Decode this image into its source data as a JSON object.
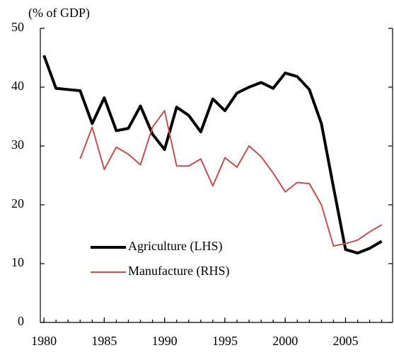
{
  "chart_data": {
    "type": "line",
    "title": "(% of GDP)",
    "x": [
      1980,
      1981,
      1982,
      1983,
      1984,
      1985,
      1986,
      1987,
      1988,
      1989,
      1990,
      1991,
      1992,
      1993,
      1994,
      1995,
      1996,
      1997,
      1998,
      1999,
      2000,
      2001,
      2002,
      2003,
      2004,
      2005,
      2006,
      2007,
      2008
    ],
    "series": [
      {
        "name": "Agriculture (LHS)",
        "color": "#000000",
        "width": 4,
        "values": [
          45.4,
          39.8,
          39.6,
          39.4,
          33.8,
          38.2,
          32.6,
          33.0,
          36.8,
          32.0,
          29.4,
          36.6,
          35.2,
          32.4,
          38.0,
          36.0,
          39.0,
          40.0,
          40.8,
          39.8,
          42.4,
          41.8,
          39.6,
          33.8,
          23.0,
          12.4,
          11.8,
          12.6,
          13.8
        ]
      },
      {
        "name": "Manufacture (RHS)",
        "color": "#c0504d",
        "width": 2,
        "values": [
          null,
          null,
          null,
          27.8,
          33.2,
          26.0,
          29.8,
          28.6,
          26.8,
          33.2,
          36.0,
          26.6,
          26.6,
          27.8,
          23.2,
          28.0,
          26.4,
          30.0,
          28.2,
          25.4,
          22.2,
          23.8,
          23.6,
          20.0,
          13.0,
          13.4,
          14.0,
          15.4,
          16.6
        ]
      }
    ],
    "xlim": [
      1979.7,
      2008.9
    ],
    "xticks": [
      1980,
      1985,
      1990,
      1995,
      2000,
      2005
    ],
    "ylim": [
      0,
      50
    ],
    "yticks": [
      0,
      10,
      20,
      30,
      40,
      50
    ]
  }
}
